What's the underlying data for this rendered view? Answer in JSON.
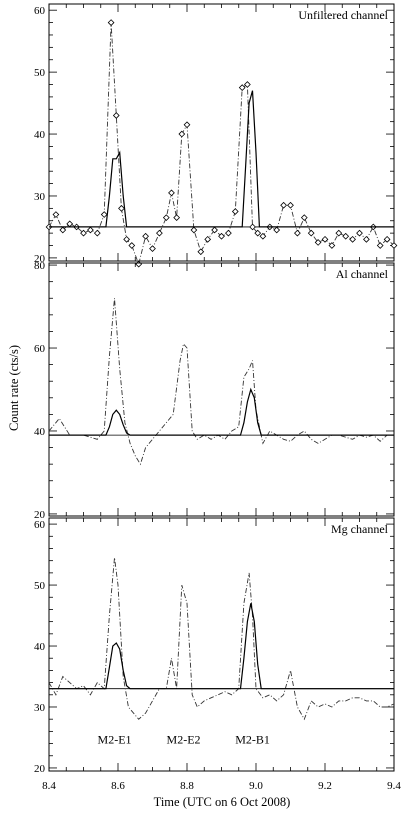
{
  "chart_data": {
    "type": "line",
    "xlabel": "Time (UTC on 6 Oct 2008)",
    "ylabel": "Count rate (cts/s)",
    "x_ticks": [
      8.4,
      8.6,
      8.8,
      9.0,
      9.2,
      9.4
    ],
    "xlim": [
      8.4,
      9.4
    ],
    "grid": false,
    "panels": [
      {
        "title": "Unfiltered channel",
        "ylim": [
          19.5,
          61
        ],
        "y_ticks": [
          20,
          30,
          40,
          50,
          60
        ],
        "baseline": 25,
        "observed": {
          "x": [
            8.4,
            8.42,
            8.44,
            8.46,
            8.48,
            8.5,
            8.52,
            8.54,
            8.56,
            8.58,
            8.595,
            8.61,
            8.625,
            8.64,
            8.66,
            8.68,
            8.7,
            8.72,
            8.74,
            8.755,
            8.77,
            8.785,
            8.8,
            8.82,
            8.84,
            8.86,
            8.88,
            8.9,
            8.92,
            8.94,
            8.96,
            8.975,
            8.99,
            9.005,
            9.02,
            9.04,
            9.06,
            9.08,
            9.1,
            9.12,
            9.14,
            9.16,
            9.18,
            9.2,
            9.22,
            9.24,
            9.26,
            9.28,
            9.3,
            9.32,
            9.34,
            9.36,
            9.38,
            9.4
          ],
          "y": [
            25,
            27,
            24.5,
            25.5,
            25,
            24,
            24.5,
            24,
            27,
            58,
            43,
            28,
            23,
            22,
            19,
            23.5,
            21.5,
            24,
            26.5,
            30.5,
            26.5,
            40,
            41.5,
            24.5,
            21,
            23,
            24.5,
            23.5,
            24,
            27.5,
            47.5,
            48,
            25,
            24,
            23.5,
            25,
            24.5,
            28.5,
            28.5,
            24,
            26.5,
            24,
            22.5,
            23,
            22,
            24,
            23.5,
            23,
            24,
            23,
            25,
            22,
            23,
            22
          ],
          "markers": true
        },
        "model": {
          "x": [
            8.4,
            8.565,
            8.575,
            8.585,
            8.595,
            8.605,
            8.615,
            8.625,
            8.635,
            8.96,
            8.97,
            8.98,
            8.99,
            9.0,
            9.01,
            9.4
          ],
          "y": [
            25,
            25,
            30,
            36,
            36,
            37,
            30,
            25,
            25,
            25,
            35,
            45,
            47,
            37,
            25,
            25
          ]
        }
      },
      {
        "title": "Al channel",
        "ylim": [
          19.5,
          80.5
        ],
        "y_ticks": [
          20,
          40,
          60,
          80
        ],
        "baseline": 39,
        "observed": {
          "x": [
            8.4,
            8.43,
            8.46,
            8.5,
            8.54,
            8.56,
            8.575,
            8.59,
            8.605,
            8.62,
            8.635,
            8.65,
            8.665,
            8.68,
            8.7,
            8.72,
            8.74,
            8.76,
            8.78,
            8.79,
            8.8,
            8.815,
            8.83,
            8.85,
            8.87,
            8.89,
            8.91,
            8.93,
            8.95,
            8.965,
            8.98,
            8.99,
            9.0,
            9.02,
            9.04,
            9.06,
            9.08,
            9.1,
            9.12,
            9.14,
            9.16,
            9.18,
            9.2,
            9.22,
            9.24,
            9.26,
            9.28,
            9.3,
            9.32,
            9.34,
            9.36,
            9.38,
            9.4
          ],
          "y": [
            40,
            43,
            39,
            39,
            38,
            40,
            58,
            72,
            55,
            42,
            37,
            34,
            32,
            36,
            38,
            40,
            42,
            44,
            57,
            61,
            60,
            40,
            38,
            39,
            38,
            39,
            38,
            40,
            41,
            53,
            55,
            57,
            45,
            37,
            40,
            39,
            38,
            37.5,
            39,
            40,
            38,
            37,
            38,
            39,
            39,
            38.5,
            38,
            39,
            38.5,
            39,
            37.5,
            39,
            39
          ]
        },
        "model": {
          "x": [
            8.4,
            8.565,
            8.575,
            8.585,
            8.595,
            8.605,
            8.615,
            8.625,
            8.635,
            8.955,
            8.965,
            8.975,
            8.985,
            8.995,
            9.005,
            9.015,
            9.4
          ],
          "y": [
            39,
            39,
            41,
            44,
            45,
            44,
            41.5,
            39.5,
            39,
            39,
            42,
            47,
            50,
            48,
            42,
            39,
            39
          ]
        }
      },
      {
        "title": "Mg channel",
        "ylim": [
          19.5,
          61
        ],
        "y_ticks": [
          20,
          30,
          40,
          50,
          60
        ],
        "baseline": 33,
        "observed": {
          "x": [
            8.4,
            8.42,
            8.44,
            8.46,
            8.48,
            8.5,
            8.52,
            8.54,
            8.56,
            8.575,
            8.59,
            8.6,
            8.615,
            8.63,
            8.645,
            8.66,
            8.68,
            8.7,
            8.72,
            8.74,
            8.755,
            8.77,
            8.785,
            8.8,
            8.815,
            8.83,
            8.85,
            8.87,
            8.89,
            8.91,
            8.93,
            8.95,
            8.965,
            8.98,
            8.99,
            9.0,
            9.02,
            9.04,
            9.06,
            9.08,
            9.1,
            9.12,
            9.14,
            9.16,
            9.18,
            9.2,
            9.22,
            9.24,
            9.26,
            9.28,
            9.3,
            9.32,
            9.34,
            9.36,
            9.38,
            9.4
          ],
          "y": [
            34,
            32,
            35,
            34,
            33,
            33.5,
            32,
            34,
            33,
            45,
            54.5,
            50,
            35,
            30,
            29,
            28,
            29,
            31,
            33,
            33,
            38,
            33,
            50,
            47,
            32,
            30,
            31,
            31.5,
            32,
            32.5,
            32,
            33,
            47,
            52,
            45,
            33,
            31.5,
            32,
            31,
            32,
            36,
            30,
            28,
            31,
            30,
            30.5,
            30,
            31,
            31,
            31.5,
            31.5,
            31,
            31,
            30,
            30,
            30.5
          ]
        },
        "model": {
          "x": [
            8.4,
            8.565,
            8.575,
            8.585,
            8.595,
            8.605,
            8.615,
            8.625,
            8.635,
            8.955,
            8.965,
            8.975,
            8.985,
            8.995,
            9.005,
            9.015,
            9.4
          ],
          "y": [
            33,
            33,
            36.5,
            40,
            40.5,
            39.5,
            36,
            33.5,
            33,
            33,
            38,
            44,
            47,
            44,
            37,
            33,
            33
          ]
        },
        "annotations": [
          {
            "text": "M2-E1",
            "x": 8.59,
            "y": 24
          },
          {
            "text": "M2-E2",
            "x": 8.79,
            "y": 24
          },
          {
            "text": "M2-B1",
            "x": 8.99,
            "y": 24
          }
        ]
      }
    ]
  }
}
